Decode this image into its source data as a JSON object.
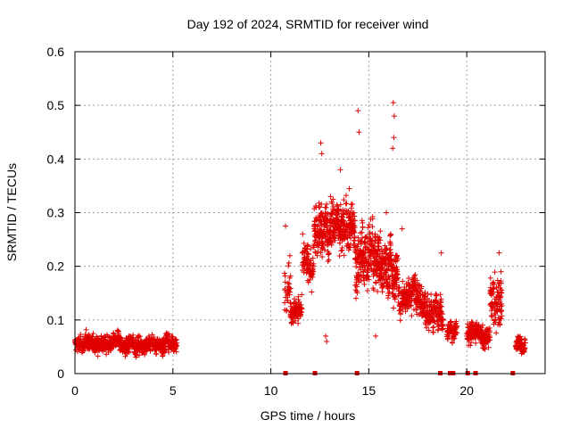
{
  "chart_data": {
    "type": "scatter",
    "title": "Day 192 of 2024, SRMTID for receiver wind",
    "xlabel": "GPS time / hours",
    "ylabel": "SRMTID / TECUs",
    "xlim": [
      0,
      24
    ],
    "ylim": [
      0,
      0.6
    ],
    "xticks": [
      0,
      5,
      10,
      15,
      20
    ],
    "yticks": [
      0,
      0.1,
      0.2,
      0.3,
      0.4,
      0.5,
      0.6
    ],
    "xtick_labels": [
      "0",
      "5",
      "10",
      "15",
      "20"
    ],
    "ytick_labels": [
      "0",
      "0.1",
      "0.2",
      "0.3",
      "0.4",
      "0.5",
      "0.6"
    ],
    "grid": true,
    "marker": "+",
    "color": "#e00000",
    "series_segments": [
      {
        "start": 0.0,
        "end": 5.2,
        "center": 0.055,
        "spread": 0.025,
        "step": 0.012
      },
      {
        "start": 10.7,
        "end": 11.0,
        "center": 0.17,
        "spread": 0.07,
        "step": 0.02
      },
      {
        "start": 11.0,
        "end": 11.6,
        "center": 0.12,
        "spread": 0.035,
        "step": 0.012
      },
      {
        "start": 11.6,
        "end": 12.2,
        "center": 0.2,
        "spread": 0.06,
        "step": 0.014
      },
      {
        "start": 12.2,
        "end": 13.2,
        "center": 0.27,
        "spread": 0.08,
        "step": 0.01
      },
      {
        "start": 13.2,
        "end": 14.3,
        "center": 0.28,
        "spread": 0.07,
        "step": 0.01
      },
      {
        "start": 14.3,
        "end": 15.2,
        "center": 0.22,
        "spread": 0.09,
        "step": 0.01
      },
      {
        "start": 15.2,
        "end": 16.5,
        "center": 0.2,
        "spread": 0.08,
        "step": 0.01
      },
      {
        "start": 16.5,
        "end": 17.8,
        "center": 0.14,
        "spread": 0.05,
        "step": 0.012
      },
      {
        "start": 17.8,
        "end": 18.8,
        "center": 0.12,
        "spread": 0.05,
        "step": 0.012
      },
      {
        "start": 19.0,
        "end": 19.5,
        "center": 0.08,
        "spread": 0.03,
        "step": 0.015
      },
      {
        "start": 20.0,
        "end": 21.2,
        "center": 0.07,
        "spread": 0.035,
        "step": 0.012
      },
      {
        "start": 21.2,
        "end": 21.8,
        "center": 0.13,
        "spread": 0.08,
        "step": 0.014
      },
      {
        "start": 22.5,
        "end": 23.0,
        "center": 0.055,
        "spread": 0.025,
        "step": 0.012
      }
    ],
    "outliers": [
      {
        "x": 12.55,
        "y": 0.43
      },
      {
        "x": 12.6,
        "y": 0.41
      },
      {
        "x": 14.45,
        "y": 0.49
      },
      {
        "x": 14.5,
        "y": 0.45
      },
      {
        "x": 16.25,
        "y": 0.505
      },
      {
        "x": 16.3,
        "y": 0.48
      },
      {
        "x": 16.28,
        "y": 0.44
      },
      {
        "x": 16.22,
        "y": 0.42
      },
      {
        "x": 13.55,
        "y": 0.38
      },
      {
        "x": 12.8,
        "y": 0.07
      },
      {
        "x": 12.85,
        "y": 0.06
      },
      {
        "x": 15.35,
        "y": 0.07
      },
      {
        "x": 18.7,
        "y": 0.225
      },
      {
        "x": 21.65,
        "y": 0.225
      },
      {
        "x": 21.75,
        "y": 0.19
      },
      {
        "x": 10.75,
        "y": 0.275
      },
      {
        "x": 15.9,
        "y": 0.3
      },
      {
        "x": 16.7,
        "y": 0.27
      }
    ],
    "baseline_marks_x": [
      10.75,
      12.25,
      14.4,
      18.65,
      19.15,
      19.3,
      20.05,
      20.45,
      22.35
    ]
  }
}
